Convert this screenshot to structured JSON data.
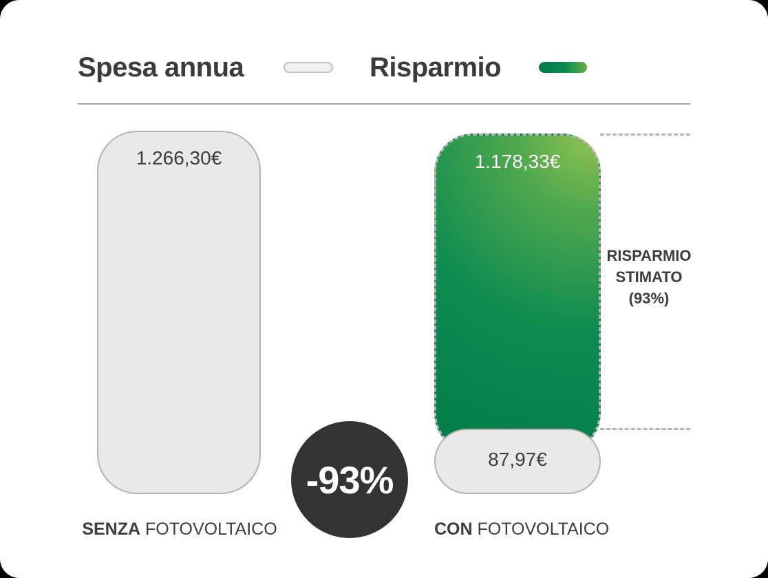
{
  "legend": {
    "items": [
      {
        "label": "Spesa annua",
        "swatch": "gray-pill",
        "color": "#e9e9e9"
      },
      {
        "label": "Risparmio",
        "swatch": "green-pill",
        "color": "#0b8a4f"
      }
    ]
  },
  "bars": {
    "left": {
      "value": "1.266,30€",
      "label_bold": "SENZA",
      "label_rest": " FOTOVOLTAICO"
    },
    "right": {
      "savings_value": "1.178,33€",
      "residual_value": "87,97€",
      "label_bold": "CON",
      "label_rest": " FOTOVOLTAICO"
    }
  },
  "badge": {
    "text": "-93%"
  },
  "annotation": {
    "line1": "RISPARMIO",
    "line2": "STIMATO",
    "line3": "(93%)"
  },
  "colors": {
    "text_dark": "#3b3b3b",
    "gray_bar_fill": "#e9e9e9",
    "gray_border": "#b3b3b3",
    "green_dark": "#007c49",
    "green_mid": "#0b8a4f",
    "green_light": "#90c350",
    "badge_bg": "#333333",
    "value_on_green": "#ffffff"
  },
  "chart_data": {
    "type": "bar",
    "title": "Spesa annua",
    "categories": [
      "SENZA FOTOVOLTAICO",
      "CON FOTOVOLTAICO"
    ],
    "series": [
      {
        "name": "Spesa annua",
        "values": [
          1266.3,
          87.97
        ],
        "labels": [
          "1.266,30€",
          "87,97€"
        ],
        "color": "#e9e9e9"
      },
      {
        "name": "Risparmio",
        "values": [
          0,
          1178.33
        ],
        "labels": [
          "",
          "1.178,33€"
        ],
        "color": "#0b8a4f"
      }
    ],
    "annotations": [
      {
        "text": "-93%",
        "type": "badge-circle",
        "position": "between-bars"
      },
      {
        "text": "RISPARMIO STIMATO (93%)",
        "type": "side-label",
        "refers_to": "Risparmio",
        "position": "right-of-second-bar"
      }
    ],
    "legend_position": "top",
    "grid": false,
    "currency": "EUR",
    "savings_percent": 93
  }
}
